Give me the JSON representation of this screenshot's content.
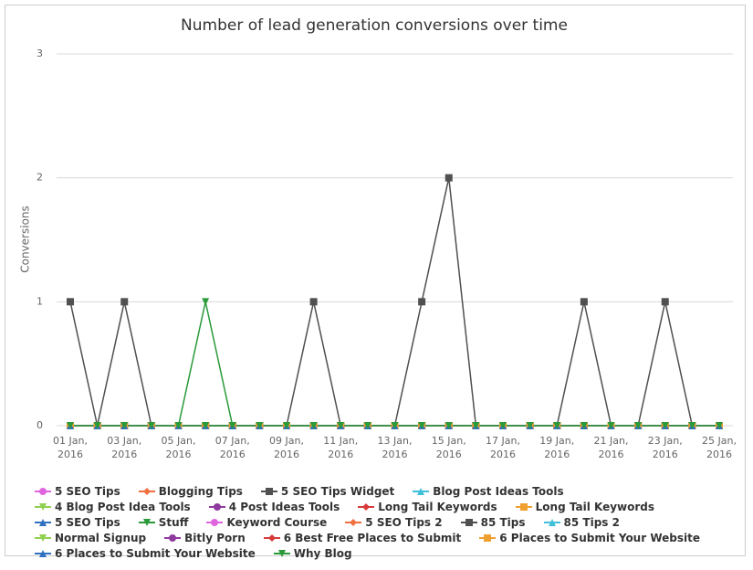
{
  "chart_data": {
    "type": "line",
    "title": "Number of lead generation conversions over time",
    "y_label": "Conversions",
    "categories": [
      "01 Jan, 2016",
      null,
      "03 Jan, 2016",
      null,
      "05 Jan, 2016",
      null,
      "07 Jan, 2016",
      null,
      "09 Jan, 2016",
      null,
      "11 Jan, 2016",
      null,
      "13 Jan, 2016",
      null,
      "15 Jan, 2016",
      null,
      "17 Jan, 2016",
      null,
      "19 Jan, 2016",
      null,
      "21 Jan, 2016",
      null,
      "23 Jan, 2016",
      null,
      "25 Jan, 2016"
    ],
    "ylim": [
      0,
      3
    ],
    "yticks": [
      0,
      1,
      2,
      3
    ],
    "grid": true,
    "series": [
      {
        "name": "5 SEO Tips",
        "color": "#e066e0",
        "marker": "circle",
        "values": [
          0,
          0,
          0,
          0,
          0,
          0,
          0,
          0,
          0,
          0,
          0,
          0,
          0,
          0,
          0,
          0,
          0,
          0,
          0,
          0,
          0,
          0,
          0,
          0,
          0
        ]
      },
      {
        "name": "Blogging Tips",
        "color": "#f07040",
        "marker": "diamond",
        "values": [
          0,
          0,
          0,
          0,
          0,
          0,
          0,
          0,
          0,
          0,
          0,
          0,
          0,
          0,
          0,
          0,
          0,
          0,
          0,
          0,
          0,
          0,
          0,
          0,
          0
        ]
      },
      {
        "name": "5 SEO Tips Widget",
        "color": "#505050",
        "marker": "square",
        "values": [
          1,
          0,
          1,
          0,
          0,
          0,
          0,
          0,
          0,
          1,
          0,
          0,
          0,
          1,
          2,
          0,
          0,
          0,
          0,
          1,
          0,
          0,
          1,
          0,
          0
        ]
      },
      {
        "name": "Blog Post Ideas Tools",
        "color": "#40c0d8",
        "marker": "triangle",
        "values": [
          0,
          0,
          0,
          0,
          0,
          0,
          0,
          0,
          0,
          0,
          0,
          0,
          0,
          0,
          0,
          0,
          0,
          0,
          0,
          0,
          0,
          0,
          0,
          0,
          0
        ]
      },
      {
        "name": "4 Blog Post Idea Tools",
        "color": "#90d050",
        "marker": "down",
        "values": [
          0,
          0,
          0,
          0,
          0,
          0,
          0,
          0,
          0,
          0,
          0,
          0,
          0,
          0,
          0,
          0,
          0,
          0,
          0,
          0,
          0,
          0,
          0,
          0,
          0
        ]
      },
      {
        "name": "4 Post Ideas Tools",
        "color": "#8e3a9e",
        "marker": "circle",
        "values": [
          0,
          0,
          0,
          0,
          0,
          0,
          0,
          0,
          0,
          0,
          0,
          0,
          0,
          0,
          0,
          0,
          0,
          0,
          0,
          0,
          0,
          0,
          0,
          0,
          0
        ]
      },
      {
        "name": "Long Tail Keywords",
        "color": "#d83a3a",
        "marker": "diamond",
        "values": [
          0,
          0,
          0,
          0,
          0,
          0,
          0,
          0,
          0,
          0,
          0,
          0,
          0,
          0,
          0,
          0,
          0,
          0,
          0,
          0,
          0,
          0,
          0,
          0,
          0
        ]
      },
      {
        "name": "Long Tail Keywords",
        "color": "#f0a030",
        "marker": "square",
        "values": [
          0,
          0,
          0,
          0,
          0,
          0,
          0,
          0,
          0,
          0,
          0,
          0,
          0,
          0,
          0,
          0,
          0,
          0,
          0,
          0,
          0,
          0,
          0,
          0,
          0
        ]
      },
      {
        "name": "5 SEO Tips",
        "color": "#3070c0",
        "marker": "triangle",
        "values": [
          0,
          0,
          0,
          0,
          0,
          0,
          0,
          0,
          0,
          0,
          0,
          0,
          0,
          0,
          0,
          0,
          0,
          0,
          0,
          0,
          0,
          0,
          0,
          0,
          0
        ]
      },
      {
        "name": "Stuff",
        "color": "#2a9a3a",
        "marker": "down",
        "values": [
          0,
          0,
          0,
          0,
          0,
          1,
          0,
          0,
          0,
          0,
          0,
          0,
          0,
          0,
          0,
          0,
          0,
          0,
          0,
          0,
          0,
          0,
          0,
          0,
          0
        ]
      },
      {
        "name": "Keyword Course",
        "color": "#e066e0",
        "marker": "circle",
        "values": [
          0,
          0,
          0,
          0,
          0,
          0,
          0,
          0,
          0,
          0,
          0,
          0,
          0,
          0,
          0,
          0,
          0,
          0,
          0,
          0,
          0,
          0,
          0,
          0,
          0
        ]
      },
      {
        "name": "5 SEO Tips 2",
        "color": "#f07040",
        "marker": "diamond",
        "values": [
          0,
          0,
          0,
          0,
          0,
          0,
          0,
          0,
          0,
          0,
          0,
          0,
          0,
          0,
          0,
          0,
          0,
          0,
          0,
          0,
          0,
          0,
          0,
          0,
          0
        ]
      },
      {
        "name": "85 Tips",
        "color": "#505050",
        "marker": "square",
        "values": [
          0,
          0,
          0,
          0,
          0,
          0,
          0,
          0,
          0,
          0,
          0,
          0,
          0,
          0,
          0,
          0,
          0,
          0,
          0,
          0,
          0,
          0,
          0,
          0,
          0
        ]
      },
      {
        "name": "85 Tips 2",
        "color": "#40c0d8",
        "marker": "triangle",
        "values": [
          0,
          0,
          0,
          0,
          0,
          0,
          0,
          0,
          0,
          0,
          0,
          0,
          0,
          0,
          0,
          0,
          0,
          0,
          0,
          0,
          0,
          0,
          0,
          0,
          0
        ]
      },
      {
        "name": "Normal Signup",
        "color": "#90d050",
        "marker": "down",
        "values": [
          0,
          0,
          0,
          0,
          0,
          0,
          0,
          0,
          0,
          0,
          0,
          0,
          0,
          0,
          0,
          0,
          0,
          0,
          0,
          0,
          0,
          0,
          0,
          0,
          0
        ]
      },
      {
        "name": "Bitly Porn",
        "color": "#8e3a9e",
        "marker": "circle",
        "values": [
          0,
          0,
          0,
          0,
          0,
          0,
          0,
          0,
          0,
          0,
          0,
          0,
          0,
          0,
          0,
          0,
          0,
          0,
          0,
          0,
          0,
          0,
          0,
          0,
          0
        ]
      },
      {
        "name": "6 Best Free Places to Submit",
        "color": "#d83a3a",
        "marker": "diamond",
        "values": [
          0,
          0,
          0,
          0,
          0,
          0,
          0,
          0,
          0,
          0,
          0,
          0,
          0,
          0,
          0,
          0,
          0,
          0,
          0,
          0,
          0,
          0,
          0,
          0,
          0
        ]
      },
      {
        "name": "6 Places to Submit Your Website",
        "color": "#f0a030",
        "marker": "square",
        "values": [
          0,
          0,
          0,
          0,
          0,
          0,
          0,
          0,
          0,
          0,
          0,
          0,
          0,
          0,
          0,
          0,
          0,
          0,
          0,
          0,
          0,
          0,
          0,
          0,
          0
        ]
      },
      {
        "name": "6 Places to Submit Your Website",
        "color": "#3070c0",
        "marker": "triangle",
        "values": [
          0,
          0,
          0,
          0,
          0,
          0,
          0,
          0,
          0,
          0,
          0,
          0,
          0,
          0,
          0,
          0,
          0,
          0,
          0,
          0,
          0,
          0,
          0,
          0,
          0
        ]
      },
      {
        "name": "Why Blog",
        "color": "#2a9a3a",
        "marker": "down",
        "values": [
          0,
          0,
          0,
          0,
          0,
          0,
          0,
          0,
          0,
          0,
          0,
          0,
          0,
          0,
          0,
          0,
          0,
          0,
          0,
          0,
          0,
          0,
          0,
          0,
          0
        ]
      }
    ]
  }
}
